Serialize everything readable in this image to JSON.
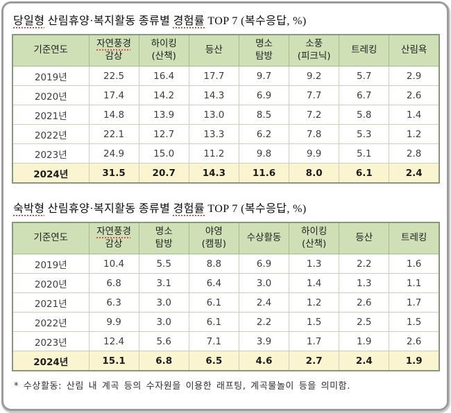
{
  "footnote": "* 수상활동: 산림 내 계곡 등의 수자원을 이용한 래프팅, 계곡물놀이 등을 의미함.",
  "colors": {
    "header_bg": "#cfe0b6",
    "highlight_row_bg": "#fbf4d1",
    "table_border": "#87997a",
    "spellcheck_underline": "#e04b4b",
    "card_border": "#9b9b9b"
  },
  "tables": [
    {
      "name": "day-trip",
      "title_segments": [
        {
          "text": "당일형",
          "spell": true
        },
        {
          "text": " 산림휴양·복지활동 종류별 ",
          "spell": false
        },
        {
          "text": "경험률",
          "spell": true
        },
        {
          "text": " TOP 7 (복수응답, %)",
          "spell": false
        }
      ],
      "columns": [
        {
          "lines": [
            "기준연도"
          ],
          "spell": false
        },
        {
          "lines": [
            "자연풍경",
            "감상"
          ],
          "spell": true
        },
        {
          "lines": [
            "하이킹",
            "(산책)"
          ],
          "spell": false
        },
        {
          "lines": [
            "등산"
          ],
          "spell": false
        },
        {
          "lines": [
            "명소",
            "탐방"
          ],
          "spell": false
        },
        {
          "lines": [
            "소풍",
            "(피크닉)"
          ],
          "spell": false
        },
        {
          "lines": [
            "트레킹"
          ],
          "spell": false
        },
        {
          "lines": [
            "산림욕"
          ],
          "spell": false
        }
      ],
      "rows": [
        {
          "year": "2019년",
          "values": [
            "22.5",
            "16.4",
            "17.7",
            "9.7",
            "9.2",
            "5.7",
            "2.9"
          ],
          "highlight": false
        },
        {
          "year": "2020년",
          "values": [
            "17.4",
            "14.2",
            "14.3",
            "6.9",
            "7.7",
            "6.7",
            "2.6"
          ],
          "highlight": false
        },
        {
          "year": "2021년",
          "values": [
            "14.8",
            "13.9",
            "13.0",
            "8.5",
            "7.2",
            "5.8",
            "1.4"
          ],
          "highlight": false
        },
        {
          "year": "2022년",
          "values": [
            "22.1",
            "12.7",
            "13.3",
            "6.2",
            "7.8",
            "5.3",
            "1.2"
          ],
          "highlight": false
        },
        {
          "year": "2023년",
          "values": [
            "24.9",
            "15.0",
            "11.2",
            "9.8",
            "9.9",
            "5.1",
            "2.8"
          ],
          "highlight": false
        },
        {
          "year": "2024년",
          "values": [
            "31.5",
            "20.7",
            "14.3",
            "11.6",
            "8.0",
            "6.1",
            "2.4"
          ],
          "highlight": true
        }
      ]
    },
    {
      "name": "overnight",
      "title_segments": [
        {
          "text": "숙박형",
          "spell": true
        },
        {
          "text": " 산림휴양·복지활동 종류별 ",
          "spell": false
        },
        {
          "text": "경험률",
          "spell": true
        },
        {
          "text": " TOP 7 (복수응답, %)",
          "spell": false
        }
      ],
      "columns": [
        {
          "lines": [
            "기준연도"
          ],
          "spell": false
        },
        {
          "lines": [
            "자연풍경",
            "감상"
          ],
          "spell": true
        },
        {
          "lines": [
            "명소",
            "탐방"
          ],
          "spell": false
        },
        {
          "lines": [
            "야영",
            "(캠핑)"
          ],
          "spell": false
        },
        {
          "lines": [
            "수상활동"
          ],
          "spell": false
        },
        {
          "lines": [
            "하이킹",
            "(산책)"
          ],
          "spell": false
        },
        {
          "lines": [
            "등산"
          ],
          "spell": false
        },
        {
          "lines": [
            "트레킹"
          ],
          "spell": false
        }
      ],
      "rows": [
        {
          "year": "2019년",
          "values": [
            "10.4",
            "5.5",
            "8.8",
            "6.9",
            "1.3",
            "2.2",
            "1.6"
          ],
          "highlight": false
        },
        {
          "year": "2020년",
          "values": [
            "6.8",
            "3.1",
            "6.4",
            "3.0",
            "1.4",
            "1.3",
            "1.1"
          ],
          "highlight": false
        },
        {
          "year": "2021년",
          "values": [
            "6.3",
            "3.0",
            "6.1",
            "2.4",
            "1.2",
            "2.6",
            "1.7"
          ],
          "highlight": false
        },
        {
          "year": "2022년",
          "values": [
            "9.9",
            "3.0",
            "6.1",
            "2.2",
            "1.5",
            "2.5",
            "1.5"
          ],
          "highlight": false
        },
        {
          "year": "2023년",
          "values": [
            "12.4",
            "5.6",
            "7.1",
            "3.9",
            "1.7",
            "1.9",
            "2.6"
          ],
          "highlight": false
        },
        {
          "year": "2024년",
          "values": [
            "15.1",
            "6.8",
            "6.5",
            "4.6",
            "2.7",
            "2.4",
            "1.9"
          ],
          "highlight": true
        }
      ]
    }
  ]
}
